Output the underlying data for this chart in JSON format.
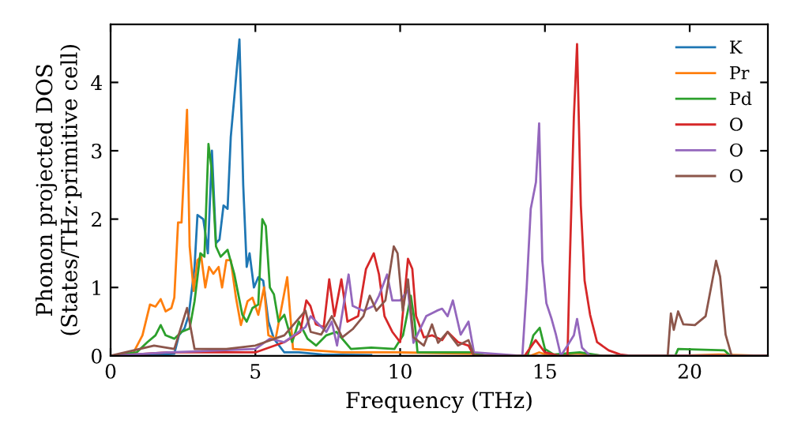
{
  "chart_data": {
    "type": "line",
    "xlabel": "Frequency (THz)",
    "ylabel": "Phonon projected DOS\n(States/THz·primitive cell)",
    "xlim": [
      0,
      22.7
    ],
    "ylim": [
      0,
      4.85
    ],
    "xticks": [
      0,
      5,
      10,
      15,
      20
    ],
    "yticks": [
      0,
      1,
      2,
      3,
      4
    ],
    "grid": false,
    "legend": "top right",
    "marker": "none",
    "line_style": "solid",
    "series": [
      {
        "name": "K",
        "color": "#1f77b4",
        "x": [
          0,
          1.0,
          1.8,
          2.2,
          2.36,
          2.55,
          2.7,
          2.9,
          3.0,
          3.2,
          3.27,
          3.36,
          3.5,
          3.64,
          3.76,
          3.9,
          4.04,
          4.15,
          4.36,
          4.45,
          4.58,
          4.7,
          4.8,
          4.95,
          5.1,
          5.27,
          5.45,
          5.64,
          6.0,
          6.5,
          7.3,
          9.0
        ],
        "values": [
          0,
          0.01,
          0.02,
          0.03,
          0.3,
          0.4,
          0.6,
          1.3,
          2.06,
          2.0,
          1.8,
          1.5,
          3.0,
          1.65,
          1.7,
          2.2,
          2.15,
          3.2,
          4.2,
          4.63,
          2.5,
          1.3,
          1.5,
          1.0,
          1.15,
          1.1,
          0.5,
          0.25,
          0.05,
          0.05,
          0.02,
          0.01
        ]
      },
      {
        "name": "Pr",
        "color": "#ff7f0e",
        "x": [
          0,
          0.73,
          1.1,
          1.36,
          1.55,
          1.73,
          1.9,
          2.1,
          2.2,
          2.33,
          2.45,
          2.64,
          2.73,
          2.87,
          3.0,
          3.13,
          3.27,
          3.4,
          3.55,
          3.73,
          3.85,
          4.0,
          4.15,
          4.33,
          4.5,
          4.73,
          4.9,
          5.1,
          5.3,
          5.45,
          5.7,
          6.1,
          6.3,
          8.0,
          10.0,
          12.5,
          13.0,
          14.5,
          14.8,
          15.2,
          16.1,
          17.0,
          19.5,
          21.0,
          22.7
        ],
        "values": [
          0,
          0,
          0.3,
          0.75,
          0.72,
          0.83,
          0.65,
          0.7,
          0.85,
          1.95,
          1.95,
          3.6,
          1.6,
          0.95,
          1.4,
          1.45,
          1.0,
          1.3,
          1.2,
          1.3,
          1.0,
          1.4,
          1.4,
          0.85,
          0.45,
          0.8,
          0.85,
          0.6,
          1.0,
          0.3,
          0.25,
          1.15,
          0.1,
          0.05,
          0.05,
          0.03,
          0,
          0,
          0.05,
          0,
          0.04,
          0,
          0,
          0.02,
          0
        ]
      },
      {
        "name": "Pd",
        "color": "#2ca02c",
        "x": [
          0,
          0.9,
          1.27,
          1.55,
          1.73,
          1.9,
          2.2,
          2.45,
          2.73,
          2.9,
          3.1,
          3.24,
          3.38,
          3.5,
          3.64,
          3.8,
          4.04,
          4.27,
          4.55,
          4.7,
          4.9,
          5.1,
          5.24,
          5.36,
          5.5,
          5.64,
          5.8,
          6.0,
          6.27,
          6.5,
          6.8,
          7.1,
          7.45,
          7.8,
          8.3,
          9.0,
          9.8,
          10.1,
          10.37,
          10.5,
          10.6,
          12.5,
          13.0,
          14.4,
          14.6,
          14.82,
          15.0,
          15.3,
          16.2,
          17.0,
          19.5,
          19.6,
          21.2,
          21.4,
          22.7
        ],
        "values": [
          0,
          0.05,
          0.2,
          0.3,
          0.45,
          0.3,
          0.25,
          0.35,
          0.4,
          0.8,
          1.5,
          1.45,
          3.1,
          2.7,
          1.6,
          1.45,
          1.55,
          1.2,
          0.6,
          0.5,
          0.7,
          0.75,
          2.0,
          1.9,
          1.0,
          0.9,
          0.5,
          0.6,
          0.2,
          0.5,
          0.25,
          0.15,
          0.3,
          0.35,
          0.1,
          0.12,
          0.1,
          0.3,
          0.88,
          0.5,
          0.05,
          0.05,
          0,
          0,
          0.3,
          0.41,
          0.1,
          0.02,
          0.05,
          0,
          0,
          0.1,
          0.08,
          0,
          0
        ]
      },
      {
        "name": "O",
        "color": "#d62728",
        "x": [
          0,
          2.0,
          5.0,
          6.0,
          6.55,
          6.76,
          6.9,
          7.09,
          7.36,
          7.55,
          7.73,
          7.97,
          8.18,
          8.55,
          8.82,
          9.09,
          9.27,
          9.46,
          9.73,
          10.0,
          10.27,
          10.42,
          10.55,
          10.82,
          11.1,
          11.45,
          11.64,
          12.0,
          12.36,
          12.55,
          14.3,
          14.68,
          15.0,
          15.5,
          15.78,
          15.85,
          16.0,
          16.11,
          16.24,
          16.37,
          16.56,
          16.8,
          17.2,
          17.6,
          18.0,
          22.7
        ],
        "values": [
          0,
          0.05,
          0.05,
          0.2,
          0.35,
          0.81,
          0.73,
          0.46,
          0.42,
          1.12,
          0.58,
          1.12,
          0.5,
          0.58,
          1.27,
          1.5,
          1.19,
          0.58,
          0.35,
          0.2,
          1.42,
          1.27,
          0.58,
          0.27,
          0.3,
          0.23,
          0.35,
          0.2,
          0.15,
          0,
          0,
          0.23,
          0.05,
          0,
          0,
          1.23,
          3.5,
          4.56,
          2.2,
          1.1,
          0.6,
          0.2,
          0.08,
          0.02,
          0,
          0
        ]
      },
      {
        "name": "O",
        "color": "#9467bd",
        "x": [
          0,
          2.0,
          5.0,
          5.5,
          6.0,
          6.73,
          6.91,
          7.45,
          7.64,
          7.82,
          8.22,
          8.36,
          8.73,
          9.09,
          9.27,
          9.55,
          9.73,
          10.0,
          10.27,
          10.46,
          10.9,
          11.27,
          11.45,
          11.64,
          11.82,
          12.09,
          12.36,
          12.55,
          14.22,
          14.37,
          14.51,
          14.69,
          14.8,
          14.91,
          15.05,
          15.23,
          15.38,
          15.55,
          15.78,
          16.0,
          16.11,
          16.28,
          16.56,
          22.7
        ],
        "values": [
          0,
          0.05,
          0.1,
          0.25,
          0.2,
          0.42,
          0.58,
          0.35,
          0.5,
          0.15,
          1.19,
          0.73,
          0.66,
          0.73,
          0.88,
          1.19,
          0.81,
          0.81,
          0.96,
          0.19,
          0.58,
          0.66,
          0.69,
          0.58,
          0.81,
          0.31,
          0.5,
          0.05,
          0,
          1.0,
          2.15,
          2.54,
          3.4,
          1.39,
          0.77,
          0.54,
          0.31,
          0,
          0.15,
          0.3,
          0.54,
          0.12,
          0,
          0
        ]
      },
      {
        "name": "O",
        "color": "#8c564b",
        "x": [
          0,
          1.5,
          2.2,
          2.64,
          2.9,
          4.0,
          5.0,
          6.0,
          6.73,
          6.91,
          7.27,
          7.64,
          8.0,
          8.36,
          8.73,
          8.95,
          9.18,
          9.49,
          9.78,
          9.91,
          10.09,
          10.27,
          10.46,
          10.82,
          11.1,
          11.31,
          11.64,
          12.0,
          12.36,
          12.55,
          19.24,
          19.35,
          19.45,
          19.6,
          19.78,
          20.18,
          20.55,
          20.91,
          21.05,
          21.24,
          21.45,
          22.7
        ],
        "values": [
          0,
          0.15,
          0.1,
          0.7,
          0.1,
          0.1,
          0.15,
          0.3,
          0.66,
          0.35,
          0.31,
          0.58,
          0.27,
          0.39,
          0.58,
          0.88,
          0.66,
          0.81,
          1.6,
          1.5,
          0.66,
          1.12,
          0.27,
          0.15,
          0.46,
          0.19,
          0.35,
          0.15,
          0.23,
          0,
          0,
          0.62,
          0.38,
          0.65,
          0.46,
          0.45,
          0.58,
          1.39,
          1.16,
          0.31,
          0,
          0
        ]
      }
    ]
  }
}
